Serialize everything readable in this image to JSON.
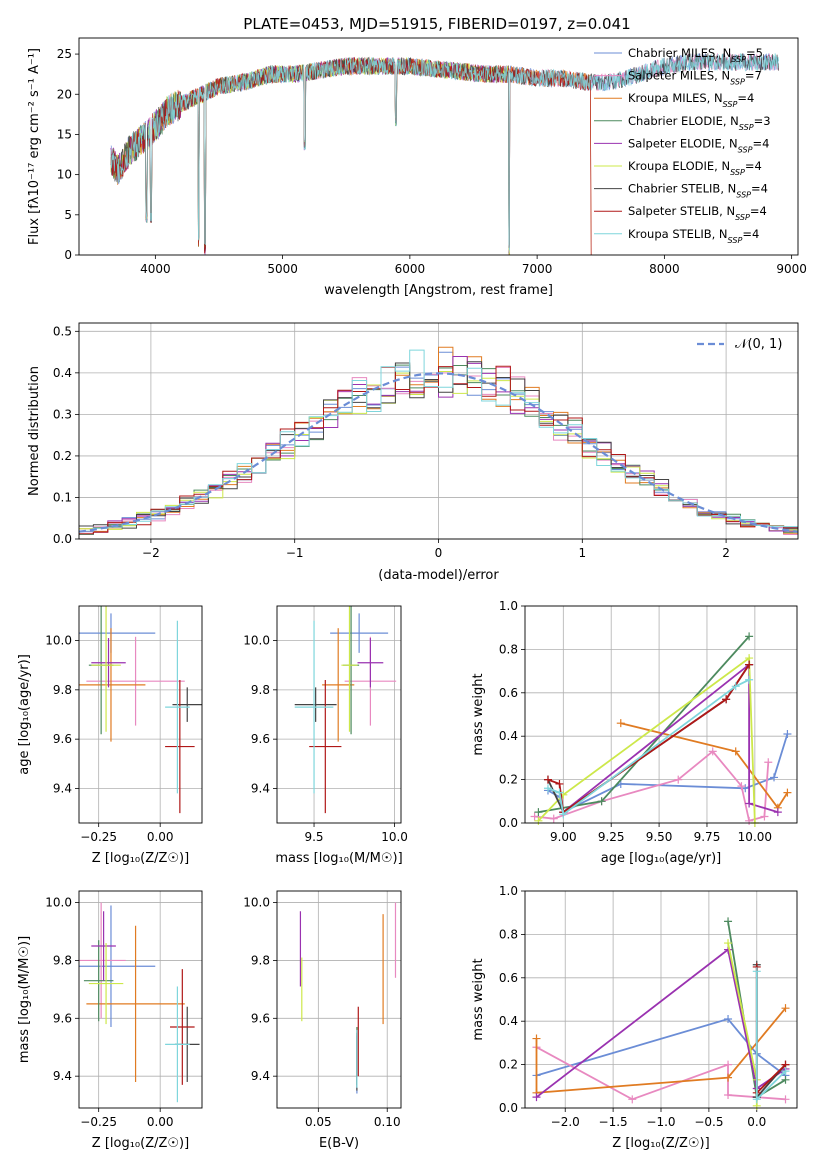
{
  "colors": {
    "Chabrier MILES": "#6b8dd6",
    "Salpeter MILES": "#e889c0",
    "Kroupa MILES": "#e07b22",
    "Chabrier ELODIE": "#4d8a5f",
    "Salpeter ELODIE": "#9a32b0",
    "Kroupa ELODIE": "#cde84a",
    "Chabrier STELIB": "#444444",
    "Salpeter STELIB": "#b01818",
    "Kroupa STELIB": "#7fd6dc",
    "gaussian": "#6b8dd6"
  },
  "chart_data": [
    {
      "id": "spectrum",
      "type": "line",
      "title": "PLATE=0453, MJD=51915, FIBERID=0197, z=0.041",
      "xlabel": "wavelength [Angstrom, rest frame]",
      "ylabel": "Flux [fλ10⁻¹⁷ erg cm⁻² s⁻¹ A⁻¹]",
      "xlim": [
        3400,
        9050
      ],
      "ylim": [
        0,
        27
      ],
      "xticks": [
        "4000",
        "5000",
        "6000",
        "7000",
        "8000",
        "9000"
      ],
      "yticks": [
        "0",
        "5",
        "10",
        "15",
        "20",
        "25"
      ],
      "legend_position": "right",
      "legend": [
        {
          "label": "Chabrier MILES, N",
          "sub": "SSP",
          "suffix": "=5"
        },
        {
          "label": "Salpeter MILES, N",
          "sub": "SSP",
          "suffix": "=7"
        },
        {
          "label": "Kroupa MILES, N",
          "sub": "SSP",
          "suffix": "=4"
        },
        {
          "label": "Chabrier ELODIE, N",
          "sub": "SSP",
          "suffix": "=3"
        },
        {
          "label": "Salpeter ELODIE, N",
          "sub": "SSP",
          "suffix": "=4"
        },
        {
          "label": "Kroupa ELODIE, N",
          "sub": "SSP",
          "suffix": "=4"
        },
        {
          "label": "Chabrier STELIB, N",
          "sub": "SSP",
          "suffix": "=4"
        },
        {
          "label": "Salpeter STELIB, N",
          "sub": "SSP",
          "suffix": "=4"
        },
        {
          "label": "Kroupa STELIB, N",
          "sub": "SSP",
          "suffix": "=4"
        }
      ],
      "continuum_x": [
        3650,
        3700,
        3800,
        3900,
        4000,
        4100,
        4300,
        4500,
        4700,
        4900,
        5100,
        5300,
        5500,
        5800,
        6000,
        6300,
        6600,
        6800,
        7000,
        7200,
        7400,
        7600,
        7800,
        8000,
        8200,
        8400,
        8600,
        8800,
        8900
      ],
      "continuum_y": [
        12,
        10.5,
        13,
        14.5,
        16,
        18,
        19.5,
        21,
        21.5,
        22.5,
        22.5,
        23,
        23.5,
        23.5,
        23.5,
        23,
        22.5,
        22.5,
        22,
        22,
        21.5,
        21.5,
        22.5,
        23.5,
        24,
        24,
        24,
        24,
        24
      ],
      "series_end": [
        8900,
        8900,
        7420,
        6780,
        6780,
        6780,
        8900,
        7420,
        8900
      ],
      "dips": [
        [
          3930,
          4
        ],
        [
          3965,
          4
        ],
        [
          4340,
          1
        ],
        [
          4390,
          0
        ],
        [
          5175,
          13
        ],
        [
          5890,
          16
        ],
        [
          6780,
          0
        ]
      ]
    },
    {
      "id": "residuals",
      "type": "histogram",
      "xlabel": "(data-model)/error",
      "ylabel": "Normed distribution",
      "xlim": [
        -2.5,
        2.5
      ],
      "ylim": [
        0,
        0.52
      ],
      "xticks": [
        "−2",
        "−1",
        "0",
        "1",
        "2"
      ],
      "yticks": [
        "0.0",
        "0.1",
        "0.2",
        "0.3",
        "0.4",
        "0.5"
      ],
      "bin_width": 0.1,
      "grid": true,
      "legend_position": "top-right",
      "gaussian_label": "𝒩(0, 1)"
    },
    {
      "id": "age_vs_Z",
      "type": "errorbar",
      "xlabel": "Z [log₁₀(Z/Z☉)]",
      "ylabel": "age  [log₁₀(age/yr)]",
      "xlim": [
        -0.33,
        0.17
      ],
      "ylim": [
        9.26,
        10.14
      ],
      "xticks": [
        -0.25,
        0.0
      ],
      "xtick_labels": [
        "−0.25",
        "0.00"
      ],
      "yticks": [
        9.4,
        9.6,
        9.8,
        10.0
      ],
      "ytick_labels": [
        "9.4",
        "9.6",
        "9.8",
        "10.0"
      ],
      "points": [
        {
          "series": "Chabrier MILES",
          "x": -0.2,
          "xerr": 0.18,
          "y": 10.03,
          "yerr": 0.08
        },
        {
          "series": "Salpeter MILES",
          "x": -0.1,
          "xerr": 0.2,
          "y": 9.835,
          "yerr": 0.18
        },
        {
          "series": "Kroupa MILES",
          "x": -0.2,
          "xerr": 0.14,
          "y": 9.82,
          "yerr": 0.23
        },
        {
          "series": "Chabrier ELODIE",
          "x": -0.24,
          "xerr": 0.05,
          "y": 9.9,
          "yerr": 0.28
        },
        {
          "series": "Salpeter ELODIE",
          "x": -0.21,
          "xerr": 0.07,
          "y": 9.91,
          "yerr": 0.1
        },
        {
          "series": "Kroupa ELODIE",
          "x": -0.22,
          "xerr": 0.06,
          "y": 9.9,
          "yerr": 0.27
        },
        {
          "series": "Chabrier STELIB",
          "x": 0.11,
          "xerr": 0.06,
          "y": 9.74,
          "yerr": 0.07
        },
        {
          "series": "Salpeter STELIB",
          "x": 0.08,
          "xerr": 0.06,
          "y": 9.57,
          "yerr": 0.27
        },
        {
          "series": "Kroupa STELIB",
          "x": 0.07,
          "xerr": 0.05,
          "y": 9.73,
          "yerr": 0.35
        }
      ]
    },
    {
      "id": "age_vs_mass",
      "type": "errorbar",
      "xlabel": "mass [log₁₀(M/M☉)]",
      "xlim": [
        9.27,
        10.04
      ],
      "ylim": [
        9.26,
        10.14
      ],
      "xticks": [
        9.5,
        10.0
      ],
      "xtick_labels": [
        "9.5",
        "10.0"
      ],
      "yticks": [
        9.4,
        9.6,
        9.8,
        10.0
      ],
      "ytick_labels": [
        "9.4",
        "9.6",
        "9.8",
        "10.0"
      ],
      "points": [
        {
          "series": "Chabrier MILES",
          "x": 9.78,
          "xerr": 0.18,
          "y": 10.03,
          "yerr": 0.08
        },
        {
          "series": "Salpeter MILES",
          "x": 9.85,
          "xerr": 0.16,
          "y": 9.835,
          "yerr": 0.18
        },
        {
          "series": "Kroupa MILES",
          "x": 9.65,
          "xerr": 0.1,
          "y": 9.82,
          "yerr": 0.23
        },
        {
          "series": "Chabrier ELODIE",
          "x": 9.73,
          "xerr": 0.05,
          "y": 9.9,
          "yerr": 0.28
        },
        {
          "series": "Salpeter ELODIE",
          "x": 9.85,
          "xerr": 0.08,
          "y": 9.91,
          "yerr": 0.1
        },
        {
          "series": "Kroupa ELODIE",
          "x": 9.72,
          "xerr": 0.05,
          "y": 9.9,
          "yerr": 0.27
        },
        {
          "series": "Chabrier STELIB",
          "x": 9.51,
          "xerr": 0.13,
          "y": 9.74,
          "yerr": 0.07
        },
        {
          "series": "Salpeter STELIB",
          "x": 9.57,
          "xerr": 0.1,
          "y": 9.57,
          "yerr": 0.27
        },
        {
          "series": "Kroupa STELIB",
          "x": 9.5,
          "xerr": 0.12,
          "y": 9.73,
          "yerr": 0.35
        }
      ]
    },
    {
      "id": "mass_vs_Z",
      "type": "errorbar",
      "xlabel": "Z [log₁₀(Z/Z☉)]",
      "ylabel": "mass [log₁₀(M/M☉)]",
      "xlim": [
        -0.33,
        0.17
      ],
      "ylim": [
        9.29,
        10.04
      ],
      "xticks": [
        -0.25,
        0.0
      ],
      "xtick_labels": [
        "−0.25",
        "0.00"
      ],
      "yticks": [
        9.4,
        9.6,
        9.8,
        10.0
      ],
      "ytick_labels": [
        "9.4",
        "9.6",
        "9.8",
        "10.0"
      ],
      "points": [
        {
          "series": "Chabrier MILES",
          "x": -0.2,
          "xerr": 0.18,
          "y": 9.78,
          "yerr": 0.21
        },
        {
          "series": "Salpeter MILES",
          "x": -0.24,
          "xerr": 0.1,
          "y": 9.8,
          "yerr": 0.2
        },
        {
          "series": "Kroupa MILES",
          "x": -0.1,
          "xerr": 0.2,
          "y": 9.65,
          "yerr": 0.27
        },
        {
          "series": "Chabrier ELODIE",
          "x": -0.25,
          "xerr": 0.06,
          "y": 9.73,
          "yerr": 0.14
        },
        {
          "series": "Salpeter ELODIE",
          "x": -0.23,
          "xerr": 0.05,
          "y": 9.85,
          "yerr": 0.12
        },
        {
          "series": "Kroupa ELODIE",
          "x": -0.22,
          "xerr": 0.07,
          "y": 9.72,
          "yerr": 0.14
        },
        {
          "series": "Chabrier STELIB",
          "x": 0.11,
          "xerr": 0.05,
          "y": 9.51,
          "yerr": 0.13
        },
        {
          "series": "Salpeter STELIB",
          "x": 0.09,
          "xerr": 0.05,
          "y": 9.57,
          "yerr": 0.2
        },
        {
          "series": "Kroupa STELIB",
          "x": 0.07,
          "xerr": 0.05,
          "y": 9.51,
          "yerr": 0.2
        }
      ]
    },
    {
      "id": "mass_vs_ebv",
      "type": "errorbar",
      "xlabel": "E(B-V)",
      "xlim": [
        0.02,
        0.11
      ],
      "ylim": [
        9.29,
        10.04
      ],
      "xticks": [
        0.05,
        0.1
      ],
      "xtick_labels": [
        "0.05",
        "0.10"
      ],
      "yticks": [
        9.4,
        9.6,
        9.8,
        10.0
      ],
      "ytick_labels": [
        "9.4",
        "9.6",
        "9.8",
        "10.0"
      ],
      "points": [
        {
          "series": "Chabrier MILES",
          "x": 0.078,
          "xerr": 0.0,
          "y": 9.44,
          "yerr": 0.1
        },
        {
          "series": "Salpeter MILES",
          "x": 0.106,
          "xerr": 0.0,
          "y": 9.87,
          "yerr": 0.13
        },
        {
          "series": "Kroupa MILES",
          "x": 0.097,
          "xerr": 0.0,
          "y": 9.77,
          "yerr": 0.19
        },
        {
          "series": "Chabrier ELODIE",
          "x": 0.078,
          "xerr": 0.0,
          "y": 9.47,
          "yerr": 0.1
        },
        {
          "series": "Salpeter ELODIE",
          "x": 0.037,
          "xerr": 0.0,
          "y": 9.84,
          "yerr": 0.13
        },
        {
          "series": "Kroupa ELODIE",
          "x": 0.038,
          "xerr": 0.0,
          "y": 9.7,
          "yerr": 0.11
        },
        {
          "series": "Chabrier STELIB",
          "x": 0.078,
          "xerr": 0.0,
          "y": 9.45,
          "yerr": 0.1
        },
        {
          "series": "Salpeter STELIB",
          "x": 0.079,
          "xerr": 0.0,
          "y": 9.52,
          "yerr": 0.12
        },
        {
          "series": "Kroupa STELIB",
          "x": 0.078,
          "xerr": 0.0,
          "y": 9.46,
          "yerr": 0.1
        }
      ]
    },
    {
      "id": "weight_vs_age",
      "type": "line",
      "xlabel": "age  [log₁₀(age/yr)]",
      "ylabel": "mass weight",
      "xlim": [
        8.8,
        10.22
      ],
      "ylim": [
        0,
        1.0
      ],
      "xticks": [
        9.0,
        9.25,
        9.5,
        9.75,
        10.0
      ],
      "xtick_labels": [
        "9.00",
        "9.25",
        "9.50",
        "9.75",
        "10.00"
      ],
      "yticks": [
        0.0,
        0.2,
        0.4,
        0.6,
        0.8,
        1.0
      ],
      "ytick_labels": [
        "0.0",
        "0.2",
        "0.4",
        "0.6",
        "0.8",
        "1.0"
      ],
      "series": [
        {
          "series": "Chabrier MILES",
          "x": [
            8.92,
            8.98,
            9.0,
            9.3,
            9.95,
            10.1,
            10.17
          ],
          "y": [
            0.15,
            0.12,
            0.05,
            0.18,
            0.16,
            0.21,
            0.41
          ]
        },
        {
          "series": "Salpeter MILES",
          "x": [
            8.85,
            8.95,
            9.2,
            9.6,
            9.78,
            9.93,
            9.97,
            10.05,
            10.07
          ],
          "y": [
            0.03,
            0.02,
            0.1,
            0.2,
            0.33,
            0.17,
            0.01,
            0.03,
            0.28
          ]
        },
        {
          "series": "Kroupa MILES",
          "x": [
            9.3,
            9.9,
            10.12,
            10.17
          ],
          "y": [
            0.46,
            0.33,
            0.07,
            0.14
          ]
        },
        {
          "series": "Chabrier ELODIE",
          "x": [
            8.87,
            9.2,
            9.97
          ],
          "y": [
            0.05,
            0.1,
            0.86
          ]
        },
        {
          "series": "Salpeter ELODIE",
          "x": [
            9.0,
            9.97,
            9.97,
            10.12
          ],
          "y": [
            0.05,
            0.73,
            0.09,
            0.05
          ]
        },
        {
          "series": "Kroupa ELODIE",
          "x": [
            8.87,
            9.0,
            9.97,
            10.0
          ],
          "y": [
            0.01,
            0.13,
            0.76,
            0.0
          ]
        },
        {
          "series": "Chabrier STELIB",
          "x": [
            8.92,
            9.0,
            9.85,
            9.97
          ],
          "y": [
            0.2,
            0.05,
            0.57,
            0.73
          ]
        },
        {
          "series": "Salpeter STELIB",
          "x": [
            8.92,
            8.98,
            9.0,
            9.85,
            9.97
          ],
          "y": [
            0.2,
            0.18,
            0.05,
            0.57,
            0.73
          ]
        },
        {
          "series": "Kroupa STELIB",
          "x": [
            8.92,
            8.98,
            9.0,
            9.9,
            9.97
          ],
          "y": [
            0.16,
            0.14,
            0.04,
            0.63,
            0.66
          ]
        }
      ]
    },
    {
      "id": "weight_vs_Z",
      "type": "line",
      "xlabel": "Z [log₁₀(Z/Z☉)]",
      "ylabel": "mass weight",
      "xlim": [
        -2.42,
        0.42
      ],
      "ylim": [
        0,
        1.0
      ],
      "xticks": [
        -2.0,
        -1.5,
        -1.0,
        -0.5,
        0.0
      ],
      "xtick_labels": [
        "−2.0",
        "−1.5",
        "−1.0",
        "−0.5",
        "0.0"
      ],
      "yticks": [
        0.0,
        0.2,
        0.4,
        0.6,
        0.8,
        1.0
      ],
      "ytick_labels": [
        "0.0",
        "0.2",
        "0.4",
        "0.6",
        "0.8",
        "1.0"
      ],
      "series": [
        {
          "series": "Chabrier MILES",
          "x": [
            -2.3,
            -0.3,
            0.0,
            0.3
          ],
          "y": [
            0.15,
            0.41,
            0.25,
            0.15
          ]
        },
        {
          "series": "Salpeter MILES",
          "x": [
            -2.3,
            -1.3,
            -0.3,
            -0.3,
            0.0,
            0.3
          ],
          "y": [
            0.28,
            0.04,
            0.2,
            0.06,
            0.05,
            0.04
          ]
        },
        {
          "series": "Kroupa MILES",
          "x": [
            -2.3,
            -2.3,
            -0.3,
            0.3
          ],
          "y": [
            0.32,
            0.07,
            0.14,
            0.46
          ]
        },
        {
          "series": "Chabrier ELODIE",
          "x": [
            -0.3,
            0.0,
            0.3
          ],
          "y": [
            0.86,
            0.05,
            0.13
          ]
        },
        {
          "series": "Salpeter ELODIE",
          "x": [
            -2.3,
            -0.3,
            0.0,
            0.3
          ],
          "y": [
            0.05,
            0.73,
            0.09,
            0.18
          ]
        },
        {
          "series": "Kroupa ELODIE",
          "x": [
            -0.3,
            0.0,
            0.0
          ],
          "y": [
            0.76,
            0.13,
            0.01
          ]
        },
        {
          "series": "Chabrier STELIB",
          "x": [
            0.0,
            0.0,
            0.3
          ],
          "y": [
            0.66,
            0.05,
            0.2
          ]
        },
        {
          "series": "Salpeter STELIB",
          "x": [
            0.0,
            0.0,
            0.3
          ],
          "y": [
            0.65,
            0.07,
            0.2
          ]
        },
        {
          "series": "Kroupa STELIB",
          "x": [
            0.0,
            0.0,
            0.3
          ],
          "y": [
            0.63,
            0.04,
            0.17
          ]
        }
      ]
    }
  ]
}
